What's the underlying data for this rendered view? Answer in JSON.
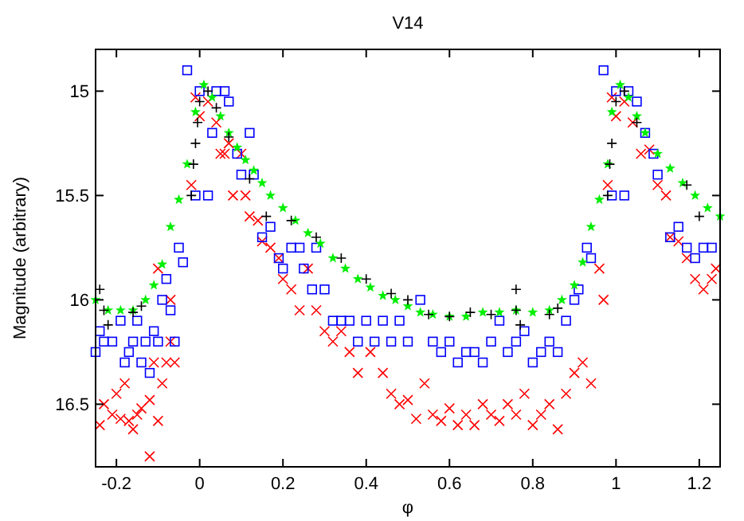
{
  "chart_data": {
    "type": "scatter",
    "title": "V14",
    "xlabel": "φ",
    "ylabel": "Magnitude (arbitrary)",
    "xlim": [
      -0.25,
      1.25
    ],
    "ylim": [
      16.8,
      14.8
    ],
    "xticks": [
      -0.2,
      0,
      0.2,
      0.4,
      0.6,
      0.8,
      1,
      1.2
    ],
    "yticks": [
      15,
      15.5,
      16,
      16.5
    ],
    "grid": false,
    "series": [
      {
        "color": "#ff0000",
        "marker": "cross",
        "x": [
          -0.24,
          -0.23,
          -0.21,
          -0.2,
          -0.19,
          -0.18,
          -0.17,
          -0.16,
          -0.15,
          -0.14,
          -0.12,
          -0.12,
          -0.11,
          -0.1,
          -0.09,
          -0.08,
          -0.07,
          -0.06,
          -0.1,
          -0.07,
          -0.02,
          -0.01,
          0,
          0.02,
          0.04,
          0.05,
          0.06,
          0.07,
          0.08,
          0.1,
          0.11,
          0.12,
          0.14,
          0.15,
          0.17,
          0.19,
          0.2,
          0.22,
          0.24,
          0.26,
          0.28,
          0.3,
          0.32,
          0.34,
          0.36,
          0.38,
          0.41,
          0.44,
          0.46,
          0.48,
          0.5,
          0.52,
          0.54,
          0.56,
          0.58,
          0.6,
          0.62,
          0.64,
          0.66,
          0.68,
          0.7,
          0.72,
          0.74,
          0.76,
          0.78,
          0.8,
          0.82,
          0.84,
          0.86,
          0.88,
          0.9,
          0.92,
          0.94,
          0.96,
          0.97,
          0.98,
          0.99,
          1,
          1.02,
          1.04,
          1.06,
          1.08,
          1.1,
          1.12,
          1.13,
          1.15,
          1.17,
          1.19,
          1.21,
          1.23,
          1.24
        ],
        "values": [
          16.6,
          16.5,
          16.55,
          16.45,
          16.57,
          16.4,
          16.58,
          16.62,
          16.55,
          16.52,
          16.75,
          16.48,
          16.3,
          16.58,
          16.4,
          16.3,
          16.2,
          16.3,
          15.85,
          16,
          15.45,
          15.03,
          15.12,
          15.05,
          15.15,
          15.3,
          15.3,
          15.25,
          15.5,
          15.3,
          15.5,
          15.6,
          15.62,
          15.72,
          15.75,
          15.8,
          15.9,
          15.95,
          16.05,
          15.85,
          16.05,
          16.15,
          16.2,
          16.15,
          16.25,
          16.35,
          16.25,
          16.35,
          16.45,
          16.5,
          16.48,
          16.57,
          16.4,
          16.55,
          16.58,
          16.52,
          16.6,
          16.55,
          16.6,
          16.5,
          16.55,
          16.58,
          16.5,
          16.55,
          16.45,
          16.6,
          16.55,
          16.5,
          16.62,
          16.45,
          16.35,
          16.3,
          16.4,
          15.85,
          16,
          15.45,
          15.03,
          15.12,
          15.05,
          15.15,
          15.3,
          15.28,
          15.45,
          15.5,
          15.7,
          15.72,
          15.8,
          15.9,
          15.95,
          15.9,
          15.85
        ]
      },
      {
        "color": "#0000ff",
        "marker": "square",
        "x": [
          -0.25,
          -0.24,
          -0.23,
          -0.21,
          -0.19,
          -0.18,
          -0.17,
          -0.16,
          -0.15,
          -0.14,
          -0.13,
          -0.12,
          -0.11,
          -0.1,
          -0.09,
          -0.08,
          -0.07,
          -0.06,
          -0.05,
          -0.04,
          -0.03,
          -0.01,
          0,
          0.02,
          0.03,
          0.04,
          0.06,
          0.07,
          0.09,
          0.1,
          0.12,
          0.13,
          0.15,
          0.17,
          0.19,
          0.2,
          0.22,
          0.24,
          0.25,
          0.27,
          0.28,
          0.3,
          0.32,
          0.34,
          0.36,
          0.38,
          0.4,
          0.42,
          0.44,
          0.46,
          0.48,
          0.5,
          0.53,
          0.56,
          0.58,
          0.6,
          0.62,
          0.64,
          0.66,
          0.68,
          0.7,
          0.72,
          0.74,
          0.76,
          0.78,
          0.8,
          0.82,
          0.84,
          0.86,
          0.88,
          0.9,
          0.91,
          0.93,
          0.94,
          0.97,
          0.99,
          1,
          1.02,
          1.03,
          1.05,
          1.07,
          1.09,
          1.1,
          1.13,
          1.15,
          1.17,
          1.19,
          1.21,
          1.23
        ],
        "values": [
          16.25,
          16.15,
          16.2,
          16.2,
          16.1,
          16.3,
          16.25,
          16.2,
          16.1,
          16.3,
          16.2,
          16.35,
          16.15,
          16.2,
          16,
          15.9,
          16.05,
          16.2,
          15.75,
          15.82,
          14.9,
          15.5,
          15,
          15.5,
          15.2,
          15,
          15,
          15.05,
          15.3,
          15.4,
          15.2,
          15.4,
          15.7,
          15.65,
          15.8,
          15.85,
          15.75,
          15.75,
          15.85,
          15.95,
          15.75,
          15.95,
          16.1,
          16.1,
          16.1,
          16.2,
          16.1,
          16.2,
          16.1,
          16.2,
          16.1,
          16.2,
          16,
          16.2,
          16.25,
          16.2,
          16.3,
          16.25,
          16.25,
          16.3,
          16.2,
          16.1,
          16.25,
          16.2,
          16.15,
          16.3,
          16.25,
          16.2,
          16.25,
          16.1,
          16,
          15.95,
          15.75,
          15.8,
          14.9,
          15.5,
          15,
          15.5,
          15,
          15.05,
          15.2,
          15.3,
          15.4,
          15.7,
          15.65,
          15.75,
          15.8,
          15.75,
          15.75
        ]
      },
      {
        "color": "#00ee00",
        "marker": "star",
        "x": [
          -0.25,
          -0.22,
          -0.19,
          -0.16,
          -0.13,
          -0.11,
          -0.09,
          -0.07,
          -0.05,
          -0.03,
          -0.01,
          0.01,
          0.03,
          0.05,
          0.07,
          0.09,
          0.11,
          0.13,
          0.15,
          0.17,
          0.2,
          0.23,
          0.26,
          0.29,
          0.32,
          0.35,
          0.38,
          0.41,
          0.44,
          0.47,
          0.5,
          0.53,
          0.56,
          0.6,
          0.64,
          0.68,
          0.72,
          0.76,
          0.8,
          0.84,
          0.87,
          0.9,
          0.92,
          0.94,
          0.96,
          0.98,
          0.99,
          1.01,
          1.03,
          1.05,
          1.07,
          1.1,
          1.13,
          1.16,
          1.19,
          1.22,
          1.25
        ],
        "values": [
          16,
          16.05,
          16.05,
          16.05,
          16,
          15.93,
          15.83,
          15.65,
          15.52,
          15.35,
          15.1,
          14.97,
          15.03,
          15.12,
          15.2,
          15.27,
          15.33,
          15.38,
          15.44,
          15.5,
          15.56,
          15.62,
          15.68,
          15.73,
          15.8,
          15.85,
          15.9,
          15.94,
          15.98,
          16,
          16.03,
          16.06,
          16.07,
          16.08,
          16.08,
          16.06,
          16.06,
          16.05,
          16.06,
          16.05,
          16,
          15.93,
          15.82,
          15.65,
          15.52,
          15.35,
          15.1,
          14.97,
          15.03,
          15.12,
          15.2,
          15.3,
          15.37,
          15.44,
          15.5,
          15.56,
          15.6
        ]
      },
      {
        "color": "#000000",
        "marker": "plus",
        "x": [
          -0.24,
          -0.23,
          -0.22,
          -0.16,
          -0.14,
          -0.02,
          -0.015,
          -0.01,
          -0.005,
          0,
          0.02,
          0.04,
          0.07,
          0.12,
          0.16,
          0.22,
          0.28,
          0.34,
          0.4,
          0.46,
          0.5,
          0.55,
          0.6,
          0.65,
          0.7,
          0.76,
          0.76,
          0.77,
          0.84,
          0.86,
          0.98,
          0.985,
          0.99,
          1,
          1.02,
          1.05,
          1.17,
          1.2
        ],
        "values": [
          15.95,
          16.05,
          16.12,
          16.06,
          16.03,
          15.5,
          15.35,
          15.25,
          15.15,
          15.05,
          15,
          15.08,
          15.22,
          15.42,
          15.6,
          15.62,
          15.7,
          15.8,
          15.9,
          15.97,
          16,
          16.07,
          16.08,
          16.06,
          16.07,
          15.95,
          16.05,
          16.12,
          16.07,
          16.04,
          15.5,
          15.35,
          15.25,
          15.05,
          15,
          15.15,
          15.45,
          15.6
        ]
      }
    ]
  }
}
